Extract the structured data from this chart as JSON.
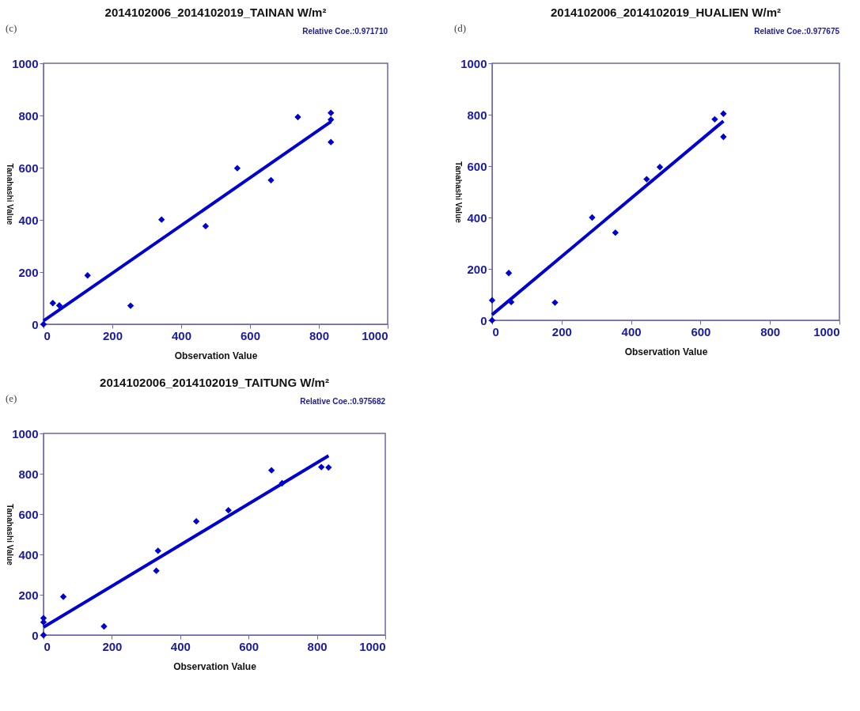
{
  "chart_data": [
    {
      "type": "scatter",
      "title": "2014102006_2014102019_TAINAN W/m²",
      "xlabel": "Observation Value",
      "ylabel": "Tanahashi Value",
      "annotations": [
        "(c)",
        "Relative Coe.:0.971710"
      ],
      "xlim": [
        0,
        1000
      ],
      "ylim": [
        0,
        1000
      ],
      "xticks": [
        0,
        200,
        400,
        600,
        800,
        1000
      ],
      "yticks": [
        0,
        200,
        400,
        600,
        800,
        1000
      ],
      "series": [
        {
          "color": "#0000d0",
          "marker": "diamond",
          "x": [
            0,
            27,
            46,
            128,
            253,
            343,
            471,
            563,
            661,
            739,
            835,
            835,
            835
          ],
          "values": [
            0,
            81,
            72,
            187,
            71,
            401,
            376,
            598,
            552,
            794,
            810,
            784,
            698
          ]
        },
        {
          "type": "line",
          "color": "#0000d0",
          "line_style": "solid",
          "x": [
            0,
            835
          ],
          "values": [
            13,
            776
          ]
        }
      ]
    },
    {
      "type": "scatter",
      "title": "2014102006_2014102019_HUALIEN W/m²",
      "xlabel": "Observation Value",
      "ylabel": "Tanahashi Value",
      "annotations": [
        "(d)",
        "Relative Coe.:0.977675"
      ],
      "xlim": [
        0,
        1000
      ],
      "ylim": [
        0,
        1000
      ],
      "xticks": [
        0,
        200,
        400,
        600,
        800,
        1000
      ],
      "yticks": [
        0,
        200,
        400,
        600,
        800,
        1000
      ],
      "series": [
        {
          "color": "#0000d0",
          "marker": "diamond",
          "x": [
            0,
            0,
            48,
            55,
            181,
            288,
            355,
            445,
            483,
            641,
            666,
            666
          ],
          "values": [
            78,
            0,
            184,
            71,
            69,
            400,
            341,
            549,
            596,
            782,
            804,
            714
          ]
        },
        {
          "type": "line",
          "color": "#0000d0",
          "line_style": "solid",
          "x": [
            0,
            666
          ],
          "values": [
            22,
            775
          ]
        }
      ]
    },
    {
      "type": "scatter",
      "title": "2014102006_2014102019_TAITUNG W/m²",
      "xlabel": "Observation Value",
      "ylabel": "Tanahashi Value",
      "annotations": [
        "(e)",
        "Relative Coe.:0.975682"
      ],
      "xlim": [
        0,
        1000
      ],
      "ylim": [
        0,
        1000
      ],
      "xticks": [
        0,
        200,
        400,
        600,
        800,
        1000
      ],
      "yticks": [
        0,
        200,
        400,
        600,
        800,
        1000
      ],
      "series": [
        {
          "color": "#0000d0",
          "marker": "diamond",
          "x": [
            0,
            0,
            0,
            58,
            177,
            330,
            335,
            447,
            541,
            667,
            698,
            813,
            834
          ],
          "values": [
            84,
            64,
            0,
            190,
            43,
            319,
            418,
            564,
            619,
            817,
            753,
            833,
            831
          ]
        },
        {
          "type": "line",
          "color": "#0000d0",
          "line_style": "solid",
          "x": [
            0,
            834
          ],
          "values": [
            39,
            889
          ]
        }
      ]
    }
  ]
}
